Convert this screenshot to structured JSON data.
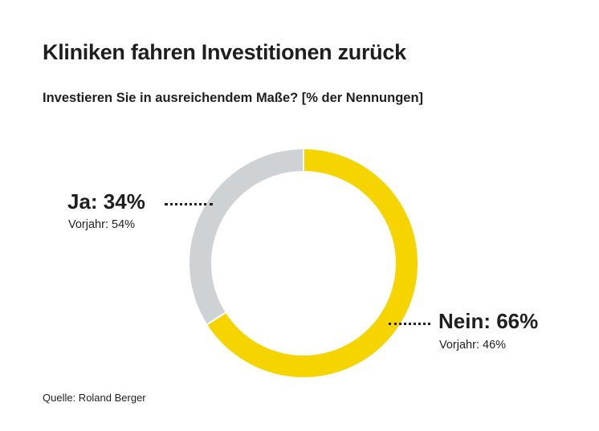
{
  "chart_data": {
    "type": "pie",
    "variant": "donut",
    "title": "Kliniken fahren Investitionen zurück",
    "subtitle": "Investieren Sie in ausreichendem Maße? [% der Nennungen]",
    "unit": "%",
    "start_angle": "12 o'clock",
    "direction": "clockwise",
    "slices": [
      {
        "name": "Nein",
        "value": 66,
        "label": "Nein: 66%",
        "prev_label": "Vorjahr: 46%",
        "prev_value": 46,
        "color": "#f5d400",
        "label_side": "right"
      },
      {
        "name": "Ja",
        "value": 34,
        "label": "Ja: 34%",
        "prev_label": "Vorjahr: 54%",
        "prev_value": 54,
        "color": "#cfd2d5",
        "label_side": "left"
      }
    ],
    "legend": "none",
    "source": "Quelle: Roland Berger"
  }
}
